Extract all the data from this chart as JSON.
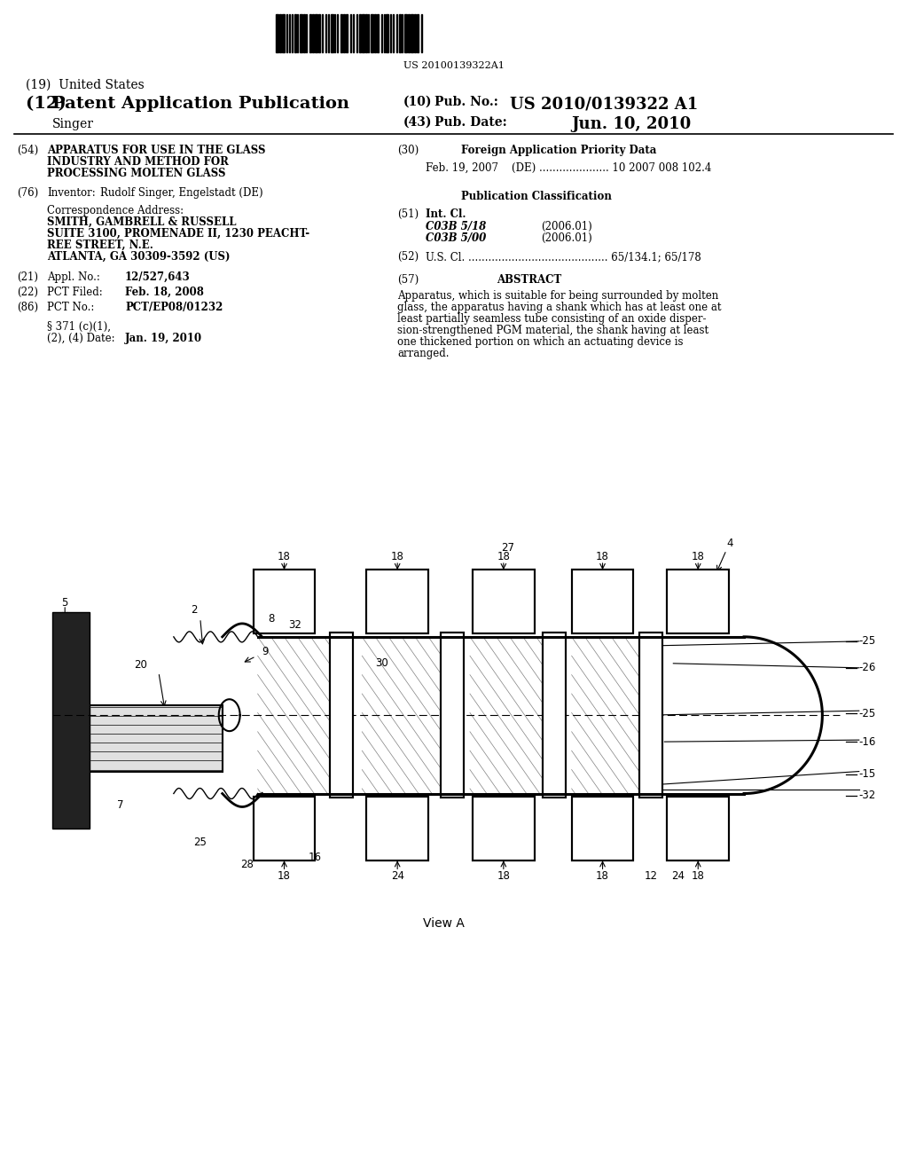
{
  "bg_color": "#ffffff",
  "barcode_text": "US 20100139322A1",
  "title_19": "(19)  United States",
  "title_12_left": "(12) ",
  "title_12_bold": "Patent Application Publication",
  "singer_label": "      Singer",
  "pub_no_label": "(10)  Pub. No.: ",
  "pub_no_value": "US 2010/0139322 A1",
  "pub_date_label": "(43)  Pub. Date:",
  "pub_date_value": "Jun. 10, 2010",
  "field_54_label": "(54)",
  "field_54_text1": "APPARATUS FOR USE IN THE GLASS",
  "field_54_text2": "INDUSTRY AND METHOD FOR",
  "field_54_text3": "PROCESSING MOLTEN GLASS",
  "field_76_label": "(76)",
  "field_76_title": "Inventor:",
  "field_76_value": "Rudolf Singer, Engelstadt (DE)",
  "corr_label": "Correspondence Address:",
  "corr_line1": "SMITH, GAMBRELL & RUSSELL",
  "corr_line2": "SUITE 3100, PROMENADE II, 1230 PEACHT-",
  "corr_line3": "REE STREET, N.E.",
  "corr_line4": "ATLANTA, GA 30309-3592 (US)",
  "field_21_label": "(21)",
  "field_21_title": "Appl. No.:",
  "field_21_value": "12/527,643",
  "field_22_label": "(22)",
  "field_22_title": "PCT Filed:",
  "field_22_value": "Feb. 18, 2008",
  "field_86_label": "(86)",
  "field_86_title": "PCT No.:",
  "field_86_value": "PCT/EP08/01232",
  "field_371_line1": "§ 371 (c)(1),",
  "field_371_line2": "(2), (4) Date:",
  "field_371_value": "Jan. 19, 2010",
  "field_30_label": "(30)",
  "field_30_title": "Foreign Application Priority Data",
  "field_30_data": "Feb. 19, 2007    (DE) ..................... 10 2007 008 102.4",
  "pub_class_title": "Publication Classification",
  "field_51_label": "(51)",
  "field_51_title": "Int. Cl.",
  "field_51_c1": "C03B 5/18",
  "field_51_c1_year": "(2006.01)",
  "field_51_c2": "C03B 5/00",
  "field_51_c2_year": "(2006.01)",
  "field_52_label": "(52)",
  "field_52_text": "U.S. Cl. .......................................... 65/134.1; 65/178",
  "field_57_label": "(57)",
  "field_57_title": "ABSTRACT",
  "abstract_text1": "Apparatus, which is suitable for being surrounded by molten",
  "abstract_text2": "glass, the apparatus having a shank which has at least one at",
  "abstract_text3": "least partially seamless tube consisting of an oxide disper-",
  "abstract_text4": "sion-strengthened PGM material, the shank having at least",
  "abstract_text5": "one thickened portion on which an actuating device is",
  "abstract_text6": "arranged.",
  "diagram_label": "View A"
}
